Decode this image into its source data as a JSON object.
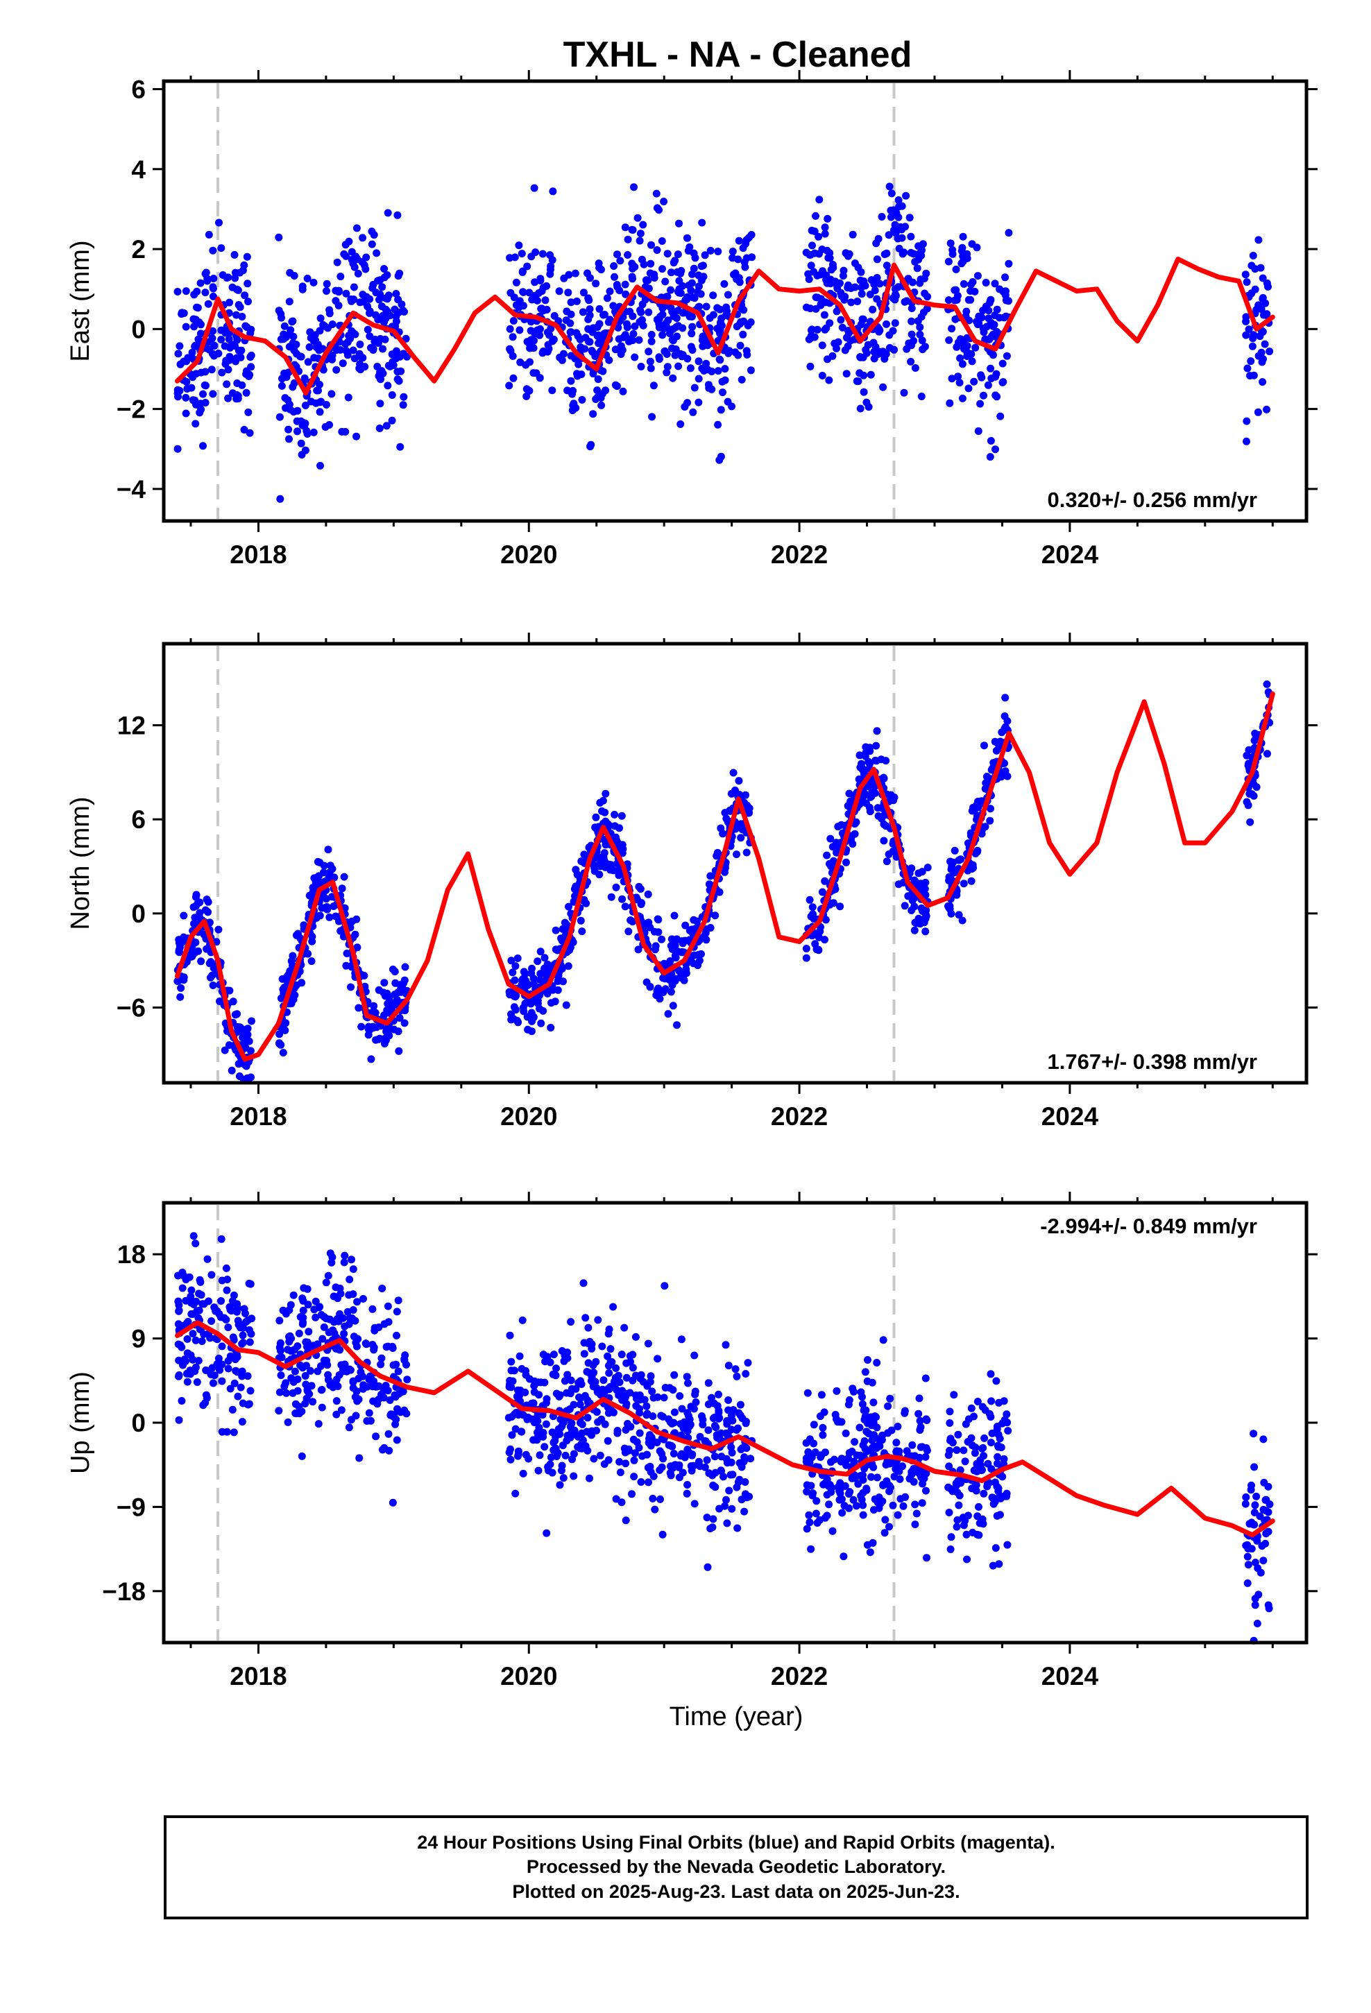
{
  "chart_data": {
    "type": "scatter",
    "title": "TXHL  - NA - Cleaned",
    "xlabel": "Time (year)",
    "xlim": [
      2017.3,
      2025.75
    ],
    "x_ticks": [
      2018,
      2020,
      2022,
      2024
    ],
    "x_tick_labels": [
      "2018",
      "2020",
      "2022",
      "2024"
    ],
    "reference_lines_x": [
      2017.7,
      2022.7
    ],
    "series_legend": [
      {
        "name": "Final Orbits",
        "color": "#0000ff",
        "marker": "dot"
      },
      {
        "name": "Rapid Orbits",
        "color": "#ff00ff",
        "marker": "dot"
      },
      {
        "name": "model",
        "color": "#ff0000",
        "marker": "line"
      }
    ],
    "data_segments": [
      [
        2017.4,
        2017.95
      ],
      [
        2018.15,
        2019.1
      ],
      [
        2019.85,
        2021.65
      ],
      [
        2022.05,
        2022.95
      ],
      [
        2023.1,
        2023.55
      ],
      [
        2025.3,
        2025.48
      ]
    ],
    "panels": [
      {
        "ylabel": "East (mm)",
        "ylim": [
          -4.8,
          6.2
        ],
        "y_ticks": [
          -4,
          -2,
          0,
          2,
          4,
          6
        ],
        "y_tick_labels": [
          "−4",
          "−2",
          "0",
          "2",
          "4",
          "6"
        ],
        "rate_label": "0.320+/- 0.256 mm/yr",
        "rate_position": "bottom-right",
        "model_x": [
          2017.4,
          2017.55,
          2017.7,
          2017.8,
          2017.9,
          2018.05,
          2018.2,
          2018.35,
          2018.5,
          2018.7,
          2018.85,
          2019.0,
          2019.15,
          2019.3,
          2019.45,
          2019.6,
          2019.75,
          2019.9,
          2020.05,
          2020.2,
          2020.35,
          2020.5,
          2020.65,
          2020.8,
          2020.95,
          2021.1,
          2021.25,
          2021.4,
          2021.55,
          2021.7,
          2021.85,
          2022.0,
          2022.15,
          2022.3,
          2022.45,
          2022.6,
          2022.7,
          2022.85,
          2023.0,
          2023.15,
          2023.3,
          2023.45,
          2023.6,
          2023.75,
          2023.9,
          2024.05,
          2024.2,
          2024.35,
          2024.5,
          2024.65,
          2024.8,
          2024.95,
          2025.1,
          2025.25,
          2025.38,
          2025.5
        ],
        "model_y": [
          -1.3,
          -0.8,
          0.75,
          0.0,
          -0.2,
          -0.3,
          -0.7,
          -1.6,
          -0.6,
          0.4,
          0.1,
          -0.05,
          -0.7,
          -1.3,
          -0.5,
          0.4,
          0.8,
          0.35,
          0.3,
          0.1,
          -0.6,
          -1.0,
          0.3,
          1.05,
          0.7,
          0.65,
          0.4,
          -0.6,
          0.7,
          1.45,
          1.0,
          0.95,
          1.0,
          0.6,
          -0.3,
          0.3,
          1.6,
          0.7,
          0.6,
          0.55,
          -0.3,
          -0.5,
          0.5,
          1.45,
          1.2,
          0.95,
          1.0,
          0.2,
          -0.3,
          0.6,
          1.75,
          1.5,
          1.3,
          1.2,
          0.0,
          0.3
        ]
      },
      {
        "ylabel": "North (mm)",
        "ylim": [
          -10.8,
          17.2
        ],
        "y_ticks": [
          -6,
          0,
          6,
          12
        ],
        "y_tick_labels": [
          "−6",
          "0",
          "6",
          "12"
        ],
        "rate_label": "1.767+/- 0.398 mm/yr",
        "rate_position": "bottom-right",
        "model_x": [
          2017.4,
          2017.5,
          2017.6,
          2017.7,
          2017.8,
          2017.9,
          2018.0,
          2018.15,
          2018.3,
          2018.45,
          2018.55,
          2018.7,
          2018.8,
          2018.95,
          2019.1,
          2019.25,
          2019.4,
          2019.55,
          2019.7,
          2019.85,
          2020.0,
          2020.15,
          2020.3,
          2020.45,
          2020.55,
          2020.7,
          2020.85,
          2021.0,
          2021.15,
          2021.3,
          2021.45,
          2021.55,
          2021.7,
          2021.85,
          2022.0,
          2022.15,
          2022.3,
          2022.45,
          2022.55,
          2022.7,
          2022.8,
          2022.95,
          2023.1,
          2023.25,
          2023.4,
          2023.55,
          2023.7,
          2023.85,
          2024.0,
          2024.2,
          2024.35,
          2024.55,
          2024.7,
          2024.85,
          2025.0,
          2025.2,
          2025.35,
          2025.5
        ],
        "model_y": [
          -4.0,
          -1.5,
          -0.5,
          -3.0,
          -7.5,
          -9.3,
          -9.0,
          -7.0,
          -3.0,
          1.5,
          2.0,
          -2.5,
          -6.5,
          -7.0,
          -5.5,
          -3.0,
          1.5,
          3.8,
          -1.0,
          -4.5,
          -5.3,
          -4.5,
          -1.5,
          3.5,
          5.5,
          3.0,
          -2.0,
          -3.8,
          -3.0,
          -0.5,
          4.0,
          7.3,
          3.5,
          -1.5,
          -1.8,
          -0.5,
          3.5,
          8.0,
          9.2,
          5.5,
          2.0,
          0.5,
          1.0,
          3.5,
          7.5,
          11.5,
          9.0,
          4.5,
          2.5,
          4.5,
          9.0,
          13.5,
          9.5,
          4.5,
          4.5,
          6.5,
          9.0,
          14.0
        ]
      },
      {
        "ylabel": "Up (mm)",
        "ylim": [
          -23.5,
          23.5
        ],
        "y_ticks": [
          -18,
          -9,
          0,
          9,
          18
        ],
        "y_tick_labels": [
          "−18",
          "−9",
          "0",
          "9",
          "18"
        ],
        "rate_label": "-2.994+/- 0.849 mm/yr",
        "rate_position": "top-right",
        "model_x": [
          2017.4,
          2017.55,
          2017.7,
          2017.85,
          2018.0,
          2018.2,
          2018.4,
          2018.6,
          2018.75,
          2018.9,
          2019.1,
          2019.3,
          2019.55,
          2019.75,
          2019.95,
          2020.15,
          2020.35,
          2020.55,
          2020.75,
          2020.95,
          2021.15,
          2021.35,
          2021.55,
          2021.75,
          2021.95,
          2022.15,
          2022.35,
          2022.5,
          2022.65,
          2022.75,
          2022.85,
          2023.0,
          2023.2,
          2023.35,
          2023.5,
          2023.65,
          2023.85,
          2024.05,
          2024.25,
          2024.5,
          2024.75,
          2025.0,
          2025.2,
          2025.35,
          2025.5
        ],
        "model_y": [
          9.3,
          10.7,
          9.5,
          7.8,
          7.5,
          6.0,
          7.5,
          8.8,
          6.5,
          5.0,
          3.8,
          3.2,
          5.5,
          3.5,
          1.5,
          1.3,
          0.5,
          2.5,
          1.0,
          -1.0,
          -2.0,
          -2.8,
          -1.5,
          -3.0,
          -4.5,
          -5.2,
          -5.5,
          -4.0,
          -3.6,
          -3.8,
          -4.2,
          -5.2,
          -5.6,
          -6.2,
          -5.0,
          -4.2,
          -6.0,
          -7.8,
          -8.8,
          -9.8,
          -7.0,
          -10.2,
          -11.0,
          -12.0,
          -10.5
        ]
      }
    ]
  },
  "caption": {
    "line1": "24 Hour Positions Using Final Orbits (blue) and Rapid Orbits (magenta).",
    "line2": "Processed by the Nevada Geodetic Laboratory.",
    "line3": "Plotted on 2025-Aug-23. Last data on 2025-Jun-23."
  }
}
